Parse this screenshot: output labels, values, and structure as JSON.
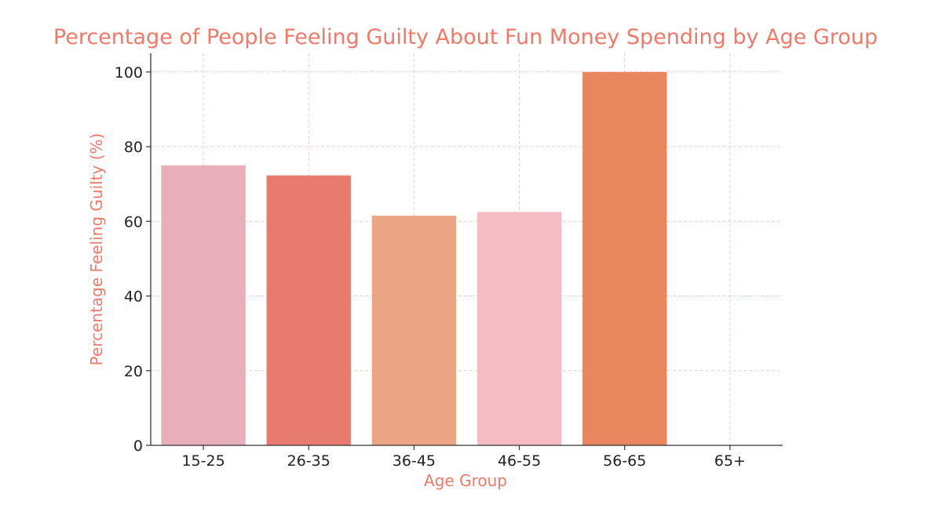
{
  "chart_data": {
    "type": "bar",
    "title": "Percentage of People Feeling Guilty About Fun Money Spending by Age Group",
    "xlabel": "Age Group",
    "ylabel": "Percentage Feeling Guilty (%)",
    "categories": [
      "15-25",
      "26-35",
      "36-45",
      "46-55",
      "56-65",
      "65+"
    ],
    "values": [
      75,
      72.3,
      61.5,
      62.5,
      100,
      0
    ],
    "bar_colors": [
      "#e8aeba",
      "#e87b70",
      "#eca584",
      "#f5bcc4",
      "#e8875e",
      "#ffffff"
    ],
    "ylim": [
      0,
      105
    ],
    "yticks": [
      0,
      20,
      40,
      60,
      80,
      100
    ],
    "grid": true,
    "colors": {
      "title": "#f07a6a",
      "axis_label": "#f07a6a",
      "grid": "#f6c9cc",
      "axis": "#333333"
    }
  }
}
